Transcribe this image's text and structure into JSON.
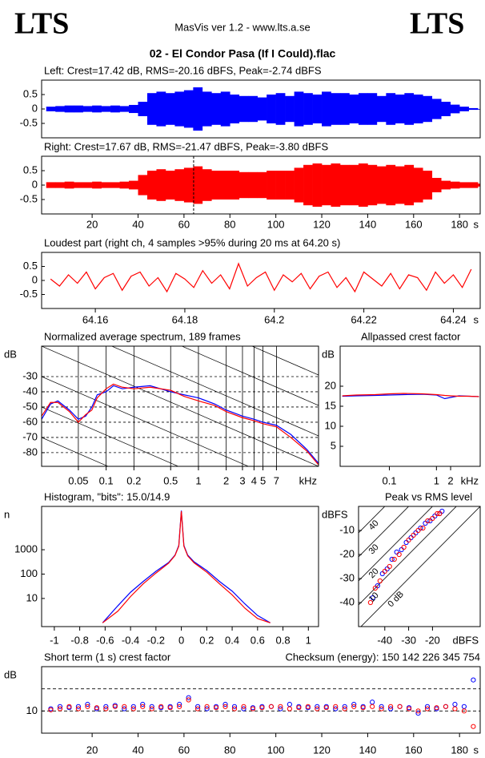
{
  "header": {
    "logo_left": "LTS",
    "logo_right": "LTS",
    "app": "MasVis ver 1.2 - www.lts.a.se",
    "title": "02 - El Condor Pasa (If I Could).flac"
  },
  "chart_data": [
    {
      "type": "area",
      "title": "Left: Crest=17.42 dB, RMS=-20.16 dBFS, Peak=-2.74 dBFS",
      "x": [
        0,
        4,
        8,
        12,
        16,
        20,
        24,
        28,
        32,
        36,
        40,
        44,
        48,
        52,
        56,
        60,
        64,
        68,
        72,
        76,
        80,
        84,
        88,
        92,
        96,
        100,
        104,
        108,
        112,
        116,
        120,
        124,
        128,
        132,
        136,
        140,
        144,
        148,
        152,
        156,
        160,
        164,
        168,
        172,
        176,
        180,
        184,
        188
      ],
      "series": [
        {
          "color": "#0000ff",
          "values": [
            0.08,
            0.1,
            0.12,
            0.12,
            0.1,
            0.12,
            0.1,
            0.12,
            0.1,
            0.14,
            0.25,
            0.55,
            0.6,
            0.55,
            0.6,
            0.65,
            0.75,
            0.6,
            0.55,
            0.6,
            0.5,
            0.45,
            0.45,
            0.4,
            0.5,
            0.55,
            0.45,
            0.6,
            0.55,
            0.5,
            0.6,
            0.55,
            0.55,
            0.5,
            0.55,
            0.55,
            0.45,
            0.55,
            0.5,
            0.55,
            0.5,
            0.45,
            0.35,
            0.25,
            0.15,
            0.08,
            0.03,
            0
          ]
        }
      ],
      "xlim": [
        -2,
        189
      ],
      "ylim": [
        -1,
        1
      ],
      "yticks": [
        -0.5,
        0,
        0.5
      ]
    },
    {
      "type": "area",
      "title": "Right: Crest=17.67 dB, RMS=-21.47 dBFS, Peak=-3.80 dBFS",
      "x": [
        0,
        4,
        8,
        12,
        16,
        20,
        24,
        28,
        32,
        36,
        40,
        44,
        48,
        52,
        56,
        60,
        64,
        68,
        72,
        76,
        80,
        84,
        88,
        92,
        96,
        100,
        104,
        108,
        112,
        116,
        120,
        124,
        128,
        132,
        136,
        140,
        144,
        148,
        152,
        156,
        160,
        164,
        168,
        172,
        176,
        180,
        184,
        188
      ],
      "series": [
        {
          "color": "#ff0000",
          "values": [
            0.1,
            0.1,
            0.12,
            0.1,
            0.1,
            0.12,
            0.1,
            0.1,
            0.12,
            0.15,
            0.35,
            0.5,
            0.55,
            0.5,
            0.55,
            0.6,
            0.65,
            0.55,
            0.5,
            0.5,
            0.5,
            0.45,
            0.45,
            0.45,
            0.5,
            0.5,
            0.5,
            0.6,
            0.7,
            0.75,
            0.7,
            0.75,
            0.7,
            0.7,
            0.75,
            0.7,
            0.65,
            0.7,
            0.65,
            0.7,
            0.6,
            0.5,
            0.25,
            0.15,
            0.12,
            0.1,
            0.1,
            0.05
          ]
        }
      ],
      "xlim": [
        -2,
        189
      ],
      "ylim": [
        -1,
        1
      ],
      "yticks": [
        -0.5,
        0,
        0.5
      ],
      "xticks": [
        20,
        40,
        60,
        80,
        100,
        120,
        140,
        160,
        180
      ],
      "x_unit": "s",
      "marker_x": 64.2
    },
    {
      "type": "line",
      "title": "Loudest part (right ch, 4 samples >95% during 20 ms at 64.20 s)",
      "x": [
        64.15,
        64.152,
        64.154,
        64.156,
        64.158,
        64.16,
        64.162,
        64.164,
        64.166,
        64.168,
        64.17,
        64.172,
        64.174,
        64.176,
        64.178,
        64.18,
        64.182,
        64.184,
        64.186,
        64.188,
        64.19,
        64.192,
        64.194,
        64.196,
        64.198,
        64.2,
        64.202,
        64.204,
        64.206,
        64.208,
        64.21,
        64.212,
        64.214,
        64.216,
        64.218,
        64.22,
        64.222,
        64.224,
        64.226,
        64.228,
        64.23,
        64.232,
        64.234,
        64.236,
        64.238,
        64.24,
        64.242,
        64.244
      ],
      "series": [
        {
          "color": "#ff0000",
          "values": [
            0.05,
            -0.2,
            0.2,
            -0.1,
            0.3,
            -0.3,
            0.1,
            0.25,
            -0.35,
            0.15,
            0.3,
            -0.2,
            0.1,
            -0.4,
            0.25,
            0.05,
            -0.25,
            0.35,
            -0.1,
            0.2,
            -0.3,
            0.6,
            -0.2,
            0.1,
            0.3,
            -0.35,
            0.2,
            -0.05,
            0.25,
            -0.3,
            0.15,
            0.3,
            -0.25,
            0.1,
            -0.4,
            0.3,
            0.05,
            -0.2,
            0.25,
            -0.3,
            0.2,
            0.1,
            -0.35,
            0.3,
            -0.1,
            0.2,
            -0.25,
            0.4
          ]
        }
      ],
      "xlim": [
        64.148,
        64.246
      ],
      "ylim": [
        -1,
        1
      ],
      "yticks": [
        -0.5,
        0,
        0.5
      ],
      "xticks": [
        64.16,
        64.18,
        64.2,
        64.22,
        64.24
      ],
      "x_unit": "s"
    },
    {
      "type": "line",
      "title": "Normalized average spectrum, 189 frames",
      "y_label": "dB",
      "x": [
        0.02,
        0.025,
        0.03,
        0.04,
        0.05,
        0.06,
        0.07,
        0.08,
        0.1,
        0.12,
        0.15,
        0.2,
        0.3,
        0.5,
        0.7,
        1,
        1.5,
        2,
        3,
        4,
        5,
        7,
        10,
        15,
        20
      ],
      "series": [
        {
          "color": "#0000ff",
          "values": [
            -58,
            -48,
            -46,
            -52,
            -58,
            -56,
            -50,
            -42,
            -40,
            -36,
            -38,
            -37,
            -36,
            -40,
            -42,
            -44,
            -48,
            -52,
            -56,
            -58,
            -60,
            -62,
            -68,
            -78,
            -87
          ]
        },
        {
          "color": "#ff0000",
          "values": [
            -56,
            -47,
            -47,
            -53,
            -60,
            -55,
            -52,
            -44,
            -38,
            -35,
            -37,
            -38,
            -37,
            -39,
            -43,
            -46,
            -49,
            -53,
            -57,
            -59,
            -61,
            -63,
            -70,
            -79,
            -88
          ]
        }
      ],
      "xlog": true,
      "xlim": [
        0.02,
        20
      ],
      "ylim": [
        -89,
        -10
      ],
      "xticks": [
        0.05,
        0.1,
        0.2,
        0.5,
        1,
        2,
        3,
        4,
        5,
        7
      ],
      "yticks": [
        -80,
        -70,
        -60,
        -50,
        -40,
        -30
      ],
      "x_unit": "kHz",
      "grid": true
    },
    {
      "type": "line",
      "title": "Allpassed crest factor",
      "y_label": "dB",
      "x": [
        0.01,
        0.02,
        0.05,
        0.1,
        0.2,
        0.5,
        1,
        1.5,
        2,
        3,
        5,
        8
      ],
      "series": [
        {
          "color": "#0000ff",
          "values": [
            17.5,
            17.6,
            17.7,
            17.8,
            17.9,
            18,
            17.8,
            16.9,
            17.2,
            17.6,
            17.5,
            17.4
          ]
        },
        {
          "color": "#ff0000",
          "values": [
            17.6,
            17.8,
            17.9,
            18.1,
            18.2,
            18.1,
            17.9,
            17.7,
            17.6,
            17.5,
            17.5,
            17.4
          ]
        }
      ],
      "xlog": true,
      "xlim": [
        0.009,
        8.5
      ],
      "ylim": [
        0,
        30
      ],
      "xticks": [
        0.1,
        1,
        2
      ],
      "yticks": [
        5,
        10,
        15,
        20
      ],
      "x_unit": "kHz"
    },
    {
      "type": "line",
      "title": "Histogram, \"bits\": 15.0/14.9",
      "y_label": "n",
      "x": [
        -0.62,
        -0.5,
        -0.4,
        -0.3,
        -0.2,
        -0.1,
        -0.05,
        -0.02,
        0,
        0.02,
        0.05,
        0.1,
        0.2,
        0.3,
        0.4,
        0.5,
        0.6,
        0.7
      ],
      "series": [
        {
          "color": "#0000ff",
          "values": [
            1,
            5,
            18,
            50,
            130,
            300,
            600,
            1500,
            40000,
            1500,
            600,
            320,
            140,
            50,
            20,
            6,
            2,
            1
          ]
        },
        {
          "color": "#ff0000",
          "values": [
            1,
            3,
            12,
            40,
            110,
            280,
            580,
            1400,
            38000,
            1400,
            560,
            290,
            120,
            40,
            14,
            4,
            1.5,
            1
          ]
        }
      ],
      "ylog": true,
      "xlim": [
        -1.1,
        1.08
      ],
      "ylim": [
        0.7,
        60000
      ],
      "xticks": [
        -1,
        -0.8,
        -0.6,
        -0.4,
        -0.2,
        0,
        0.2,
        0.4,
        0.6,
        0.8,
        1
      ],
      "yticks": [
        10,
        100,
        1000
      ]
    },
    {
      "type": "scatter",
      "title": "Peak vs RMS level",
      "y_label": "dBFS",
      "series": [
        {
          "color": "#0000ff",
          "x": [
            -45,
            -43,
            -41,
            -39,
            -37,
            -35,
            -33,
            -31,
            -29,
            -27,
            -25,
            -23,
            -21,
            -19,
            -17,
            -16
          ],
          "values": [
            -38,
            -33,
            -28,
            -26,
            -22,
            -19,
            -18,
            -15,
            -13,
            -11,
            -9,
            -7,
            -6,
            -4,
            -3,
            -2
          ]
        },
        {
          "color": "#ff0000",
          "x": [
            -46,
            -44,
            -42,
            -40,
            -38,
            -36,
            -34,
            -32,
            -30,
            -28,
            -26,
            -24,
            -22,
            -20,
            -18,
            -17
          ],
          "values": [
            -40,
            -34,
            -31,
            -27,
            -25,
            -22,
            -20,
            -17,
            -14,
            -12,
            -10,
            -9,
            -6,
            -5,
            -3,
            -3
          ]
        }
      ],
      "xlim": [
        -51,
        0
      ],
      "ylim": [
        -50,
        0
      ],
      "xticks": [
        -40,
        -30,
        -20
      ],
      "yticks": [
        -40,
        -30,
        -20,
        -10
      ],
      "x_unit": "dBFS",
      "crest_lines": [
        {
          "value": 0,
          "label": "0 dB"
        },
        10,
        20,
        30,
        40
      ]
    },
    {
      "type": "scatter",
      "title": "Short term (1 s) crest factor",
      "y_label": "dB",
      "annotation": "Checksum (energy):  150 142 226 345 754",
      "x": [
        2,
        6,
        10,
        14,
        18,
        22,
        26,
        30,
        34,
        38,
        42,
        46,
        50,
        54,
        58,
        62,
        66,
        70,
        74,
        78,
        82,
        86,
        90,
        94,
        98,
        102,
        106,
        110,
        114,
        118,
        122,
        126,
        130,
        134,
        138,
        142,
        146,
        150,
        154,
        158,
        162,
        166,
        170,
        174,
        178,
        182,
        186
      ],
      "series": [
        {
          "color": "#0000ff",
          "values": [
            11,
            12,
            11.5,
            12,
            13,
            11,
            12,
            12.5,
            11,
            12,
            13,
            12,
            11.5,
            12,
            13,
            16,
            12,
            11,
            12,
            13,
            12,
            11,
            11.5,
            12,
            12,
            11,
            13,
            12,
            11.5,
            12,
            12,
            11,
            12,
            13,
            12,
            14,
            12,
            11,
            12,
            11.5,
            9,
            12,
            11,
            12,
            13,
            12,
            24
          ]
        },
        {
          "color": "#ff0000",
          "values": [
            10.5,
            11,
            12,
            11,
            12,
            11.5,
            11,
            12,
            12,
            11,
            12,
            11,
            12,
            11.5,
            12,
            15,
            11,
            12,
            11.5,
            12,
            11,
            12,
            11,
            11.5,
            12,
            12,
            11,
            11.5,
            12,
            11,
            11.5,
            12,
            11,
            12,
            11.5,
            12,
            11,
            12,
            12,
            11,
            10,
            11,
            11.5,
            12,
            11,
            10,
            3
          ]
        }
      ],
      "xlim": [
        -2,
        189
      ],
      "ylim": [
        0,
        30
      ],
      "xticks": [
        20,
        40,
        60,
        80,
        100,
        120,
        140,
        160,
        180
      ],
      "yticks": [
        10
      ],
      "grid_lines": [
        10,
        20
      ],
      "x_unit": "s"
    }
  ]
}
